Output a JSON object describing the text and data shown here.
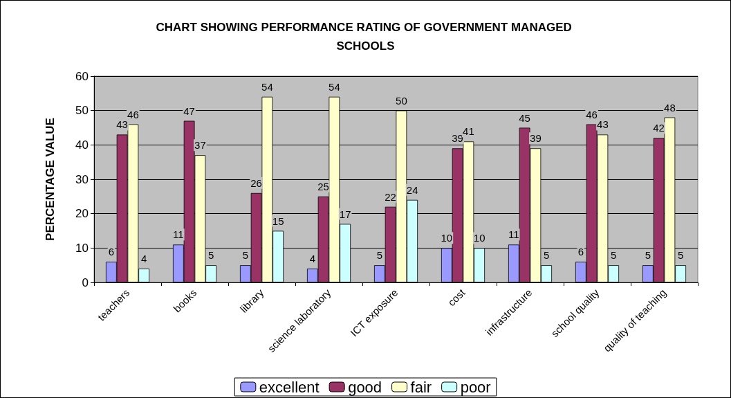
{
  "chart_data": {
    "type": "bar",
    "title": "CHART SHOWING PERFORMANCE RATING OF GOVERNMENT MANAGED SCHOOLS",
    "ylabel": "PERCENTAGE VALUE",
    "categories": [
      "teachers",
      "books",
      "library",
      "science laboratory",
      "ICT exposure",
      "cost",
      "infrastructure",
      "school quality",
      "quality of teaching"
    ],
    "series": [
      {
        "name": "excellent",
        "color": "#9999ff",
        "values": [
          6,
          11,
          5,
          4,
          5,
          10,
          11,
          6,
          5
        ]
      },
      {
        "name": "good",
        "color": "#993366",
        "values": [
          43,
          47,
          26,
          25,
          22,
          39,
          45,
          46,
          42
        ]
      },
      {
        "name": "fair",
        "color": "#ffffcc",
        "values": [
          46,
          37,
          54,
          54,
          50,
          41,
          39,
          43,
          48
        ]
      },
      {
        "name": "poor",
        "color": "#ccffff",
        "values": [
          4,
          5,
          15,
          17,
          24,
          10,
          5,
          5,
          5
        ]
      }
    ],
    "ylim": [
      0,
      60
    ],
    "yticks": [
      0,
      10,
      20,
      30,
      40,
      50,
      60
    ],
    "grid": "y",
    "legend": "bottom",
    "data_labels": true
  }
}
